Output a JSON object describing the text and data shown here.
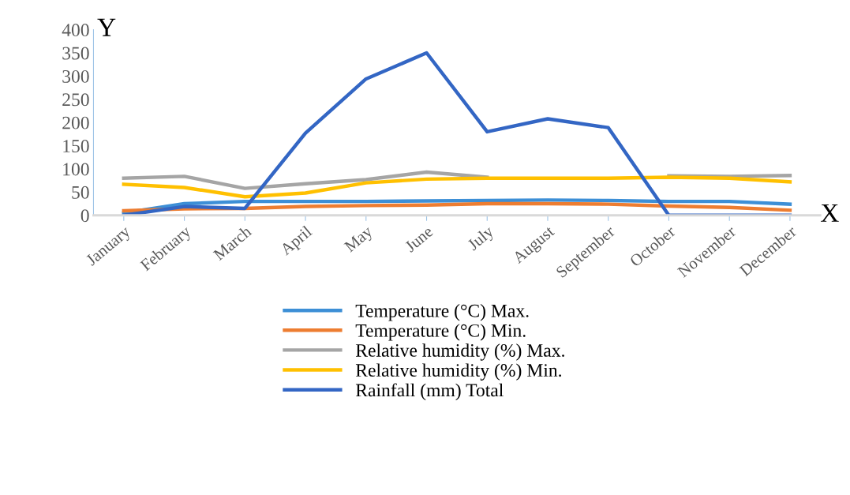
{
  "chart_data": {
    "type": "line",
    "xlabel": "X",
    "ylabel": "Y",
    "categories": [
      "January",
      "February",
      "March",
      "April",
      "May",
      "June",
      "July",
      "August",
      "September",
      "October",
      "November",
      "December"
    ],
    "series": [
      {
        "name": "Temperature (°C) Max.",
        "color": "#3d8fd6",
        "values": [
          5,
          25,
          30,
          30,
          30,
          31,
          32,
          33,
          32,
          30,
          30,
          24
        ]
      },
      {
        "name": "Temperature (°C) Min.",
        "color": "#ed7d31",
        "values": [
          10,
          14,
          15,
          19,
          21,
          22,
          25,
          25,
          24,
          20,
          17,
          11
        ]
      },
      {
        "name": "Relative humidity (%) Max.",
        "color": "#a5a5a5",
        "values": [
          80,
          84,
          58,
          68,
          77,
          93,
          82,
          null,
          null,
          85,
          84,
          86
        ]
      },
      {
        "name": "Relative humidity (%) Min.",
        "color": "#ffc000",
        "values": [
          67,
          60,
          40,
          48,
          70,
          78,
          80,
          80,
          80,
          82,
          80,
          72
        ]
      },
      {
        "name": "Rainfall (mm) Total",
        "color": "#3366c4",
        "values": [
          0,
          19,
          15,
          177,
          294,
          350,
          180,
          208,
          189,
          0,
          0,
          0
        ]
      }
    ],
    "ylim": [
      0,
      400
    ],
    "yticks": [
      0,
      50,
      100,
      150,
      200,
      250,
      300,
      350,
      400
    ],
    "grid": false,
    "legend": "bottom",
    "marker": "none",
    "line_style": "solid"
  }
}
